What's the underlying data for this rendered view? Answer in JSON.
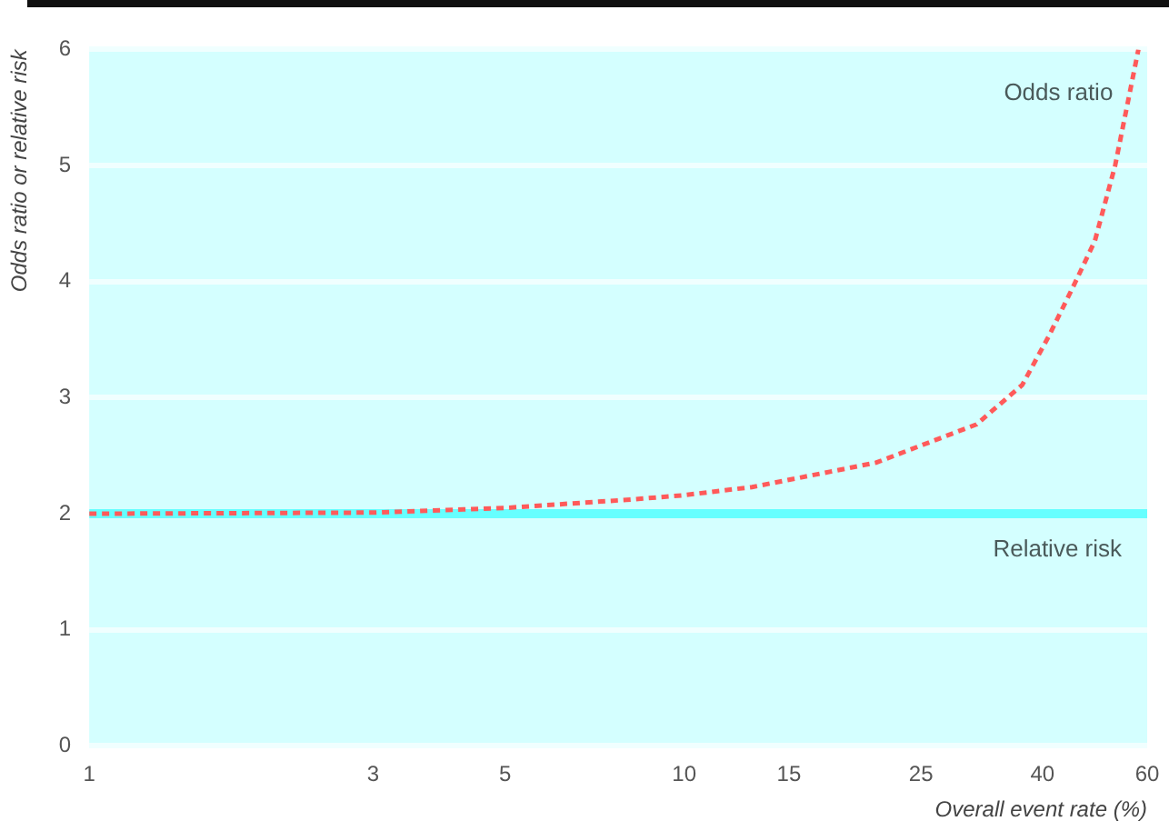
{
  "chart_data": {
    "type": "line",
    "xlabel": "Overall event rate (%)",
    "ylabel": "Odds ratio or relative risk",
    "log": "x",
    "xlim": [
      1,
      60
    ],
    "xticks": [
      1,
      3,
      5,
      10,
      15,
      25,
      40,
      60
    ],
    "ylim": [
      0,
      6
    ],
    "yticks": [
      0,
      1,
      2,
      3,
      4,
      5,
      6
    ],
    "grid": "y",
    "legend": false,
    "marker": "none",
    "series": [
      {
        "name": "Odds ratio",
        "color": "#ff5a5a",
        "line_style": "dashed",
        "x": [
          1,
          3,
          5,
          8,
          10,
          13,
          21,
          31,
          37,
          41,
          45,
          49,
          53,
          58
        ],
        "values": [
          2,
          2.01,
          2.05,
          2.12,
          2.16,
          2.23,
          2.44,
          2.77,
          3.11,
          3.53,
          3.95,
          4.35,
          5,
          6
        ]
      },
      {
        "name": "Relative risk",
        "color": "#66ffff",
        "line_style": "solid",
        "x": [
          1,
          60
        ],
        "values": [
          2,
          2
        ]
      }
    ]
  }
}
